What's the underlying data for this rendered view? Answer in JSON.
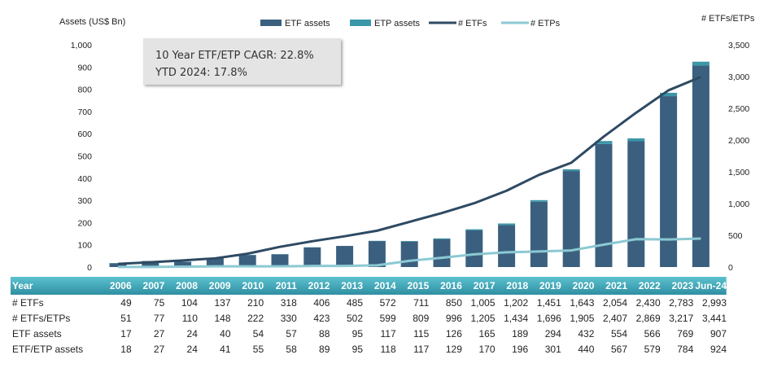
{
  "chart_data": {
    "type": "bar",
    "categories": [
      "2006",
      "2007",
      "2008",
      "2009",
      "2010",
      "2011",
      "2012",
      "2013",
      "2014",
      "2015",
      "2016",
      "2017",
      "2018",
      "2019",
      "2020",
      "2021",
      "2022",
      "2023",
      "Jun-24"
    ],
    "ylabel_left": "Assets (US$ Bn)",
    "ylabel_right": "# ETFs/ETPs",
    "ylim_left": [
      0,
      1000
    ],
    "ylim_right": [
      0,
      3500
    ],
    "yticks_left": [
      "0",
      "100",
      "200",
      "300",
      "400",
      "500",
      "600",
      "700",
      "800",
      "900",
      "1,000"
    ],
    "yticks_right": [
      "0",
      "500",
      "1,000",
      "1,500",
      "2,000",
      "2,500",
      "3,000",
      "3,500"
    ],
    "legend": [
      "ETF assets",
      "ETP assets",
      "# ETFs",
      "# ETPs"
    ],
    "legend_position": "top",
    "colors": {
      "etf_assets": "#3b607f",
      "etp_assets": "#3a97a8",
      "num_etfs": "#2e4a63",
      "num_etps": "#8cc9d3"
    },
    "series": [
      {
        "name": "ETF assets",
        "type": "bar",
        "axis": "left",
        "values": [
          17,
          27,
          24,
          40,
          54,
          57,
          88,
          95,
          117,
          115,
          126,
          165,
          189,
          294,
          432,
          554,
          566,
          769,
          907
        ]
      },
      {
        "name": "ETP assets",
        "type": "bar",
        "axis": "left",
        "values": [
          1,
          0,
          0,
          1,
          1,
          1,
          1,
          0,
          1,
          2,
          3,
          5,
          7,
          7,
          8,
          13,
          13,
          15,
          17
        ]
      },
      {
        "name": "# ETFs",
        "type": "line",
        "axis": "right",
        "values": [
          49,
          75,
          104,
          137,
          210,
          318,
          406,
          485,
          572,
          711,
          850,
          1005,
          1202,
          1451,
          1643,
          2054,
          2430,
          2783,
          2993
        ]
      },
      {
        "name": "# ETPs",
        "type": "line",
        "axis": "right",
        "values": [
          2,
          2,
          6,
          11,
          12,
          12,
          17,
          17,
          27,
          98,
          146,
          200,
          232,
          245,
          262,
          353,
          439,
          434,
          448
        ]
      }
    ]
  },
  "callout": {
    "line1": "10 Year ETF/ETP CAGR: 22.8%",
    "line2": "YTD 2024: 17.8%"
  },
  "table": {
    "header_label": "Year",
    "years": [
      "2006",
      "2007",
      "2008",
      "2009",
      "2010",
      "2011",
      "2012",
      "2013",
      "2014",
      "2015",
      "2016",
      "2017",
      "2018",
      "2019",
      "2020",
      "2021",
      "2022",
      "2023",
      "Jun-24"
    ],
    "rows": [
      {
        "label": "# ETFs",
        "values": [
          "49",
          "75",
          "104",
          "137",
          "210",
          "318",
          "406",
          "485",
          "572",
          "711",
          "850",
          "1,005",
          "1,202",
          "1,451",
          "1,643",
          "2,054",
          "2,430",
          "2,783",
          "2,993"
        ]
      },
      {
        "label": "# ETFs/ETPs",
        "values": [
          "51",
          "77",
          "110",
          "148",
          "222",
          "330",
          "423",
          "502",
          "599",
          "809",
          "996",
          "1,205",
          "1,434",
          "1,696",
          "1,905",
          "2,407",
          "2,869",
          "3,217",
          "3,441"
        ]
      },
      {
        "label": "ETF assets",
        "values": [
          "17",
          "27",
          "24",
          "40",
          "54",
          "57",
          "88",
          "95",
          "117",
          "115",
          "126",
          "165",
          "189",
          "294",
          "432",
          "554",
          "566",
          "769",
          "907"
        ]
      },
      {
        "label": "ETF/ETP assets",
        "values": [
          "18",
          "27",
          "24",
          "41",
          "55",
          "58",
          "89",
          "95",
          "118",
          "117",
          "129",
          "170",
          "196",
          "301",
          "440",
          "567",
          "579",
          "784",
          "924"
        ]
      }
    ]
  }
}
